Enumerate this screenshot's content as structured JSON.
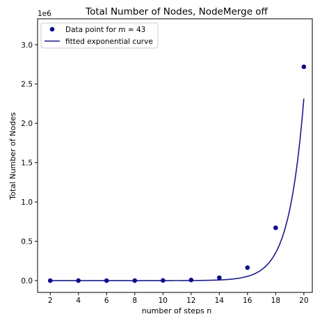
{
  "chart_data": {
    "type": "scatter",
    "title": "Total Number of Nodes, NodeMerge off",
    "xlabel": "number of steps n",
    "ylabel": "Total Number of Nodes",
    "y_scale_label": "1e6",
    "xlim": [
      1.1,
      20.6
    ],
    "ylim": [
      -0.15,
      3.33
    ],
    "x_ticks": [
      2,
      4,
      6,
      8,
      10,
      12,
      14,
      16,
      18,
      20
    ],
    "y_ticks": [
      0.0,
      0.5,
      1.0,
      1.5,
      2.0,
      2.5,
      3.0
    ],
    "y_tick_labels": [
      "0.0",
      "0.5",
      "1.0",
      "1.5",
      "2.0",
      "2.5",
      "3.0"
    ],
    "grid": false,
    "legend_position": "top-left",
    "series": [
      {
        "name": "Data point for m = 43",
        "kind": "scatter",
        "color": "#0c0c8c",
        "x": [
          2,
          4,
          6,
          8,
          10,
          12,
          14,
          16,
          18,
          20
        ],
        "y": [
          0.0,
          0.0,
          0.0,
          0.0,
          0.002,
          0.008,
          0.037,
          0.165,
          0.672,
          2.72
        ]
      },
      {
        "name": "fitted exponential curve",
        "kind": "line",
        "color": "#1a1a8c",
        "model": "y = a * exp(b * x)",
        "a": 1.63e-08,
        "b": 0.9386,
        "x_range": [
          2,
          20
        ]
      }
    ]
  }
}
